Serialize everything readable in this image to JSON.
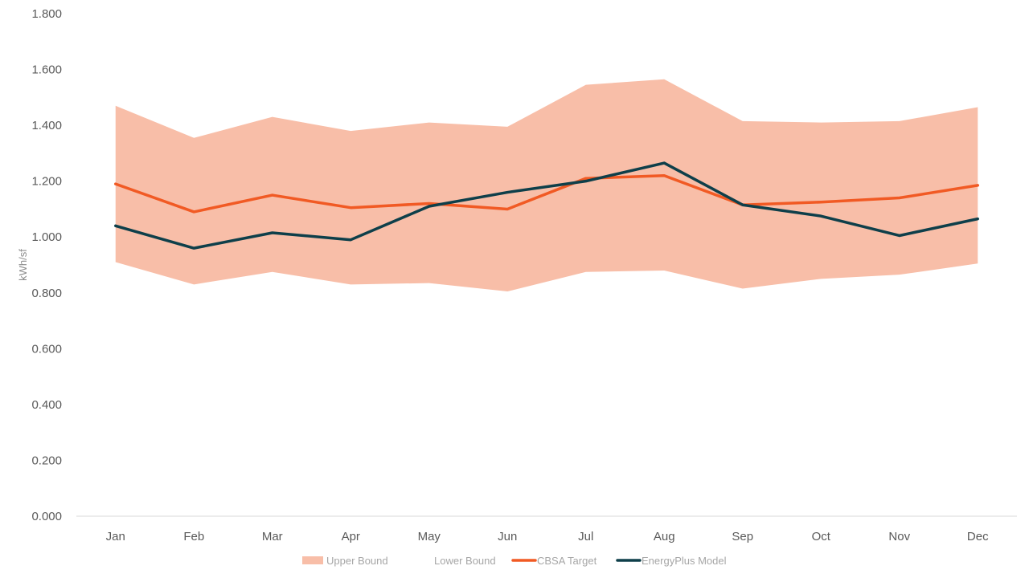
{
  "chart_data": {
    "type": "line",
    "title": "",
    "xlabel": "",
    "ylabel": "kWh/sf",
    "ylim": [
      0,
      1.8
    ],
    "y_ticks": [
      "0.000",
      "0.200",
      "0.400",
      "0.600",
      "0.800",
      "1.000",
      "1.200",
      "1.400",
      "1.600",
      "1.800"
    ],
    "categories": [
      "Jan",
      "Feb",
      "Mar",
      "Apr",
      "May",
      "Jun",
      "Jul",
      "Aug",
      "Sep",
      "Oct",
      "Nov",
      "Dec"
    ],
    "grid": false,
    "legend_position": "bottom",
    "series": [
      {
        "name": "Upper Bound",
        "kind": "area-band-top",
        "color": "#f8bea8",
        "values": [
          1.47,
          1.355,
          1.43,
          1.38,
          1.41,
          1.395,
          1.545,
          1.565,
          1.415,
          1.41,
          1.415,
          1.465
        ]
      },
      {
        "name": "Lower Bound",
        "kind": "area-band-bottom",
        "color": "#ffffff",
        "values": [
          0.91,
          0.83,
          0.875,
          0.83,
          0.835,
          0.805,
          0.875,
          0.88,
          0.815,
          0.85,
          0.865,
          0.905
        ]
      },
      {
        "name": "CBSA Target",
        "kind": "line",
        "color": "#f15a24",
        "values": [
          1.19,
          1.09,
          1.15,
          1.105,
          1.12,
          1.1,
          1.21,
          1.22,
          1.115,
          1.125,
          1.14,
          1.185
        ]
      },
      {
        "name": "EnergyPlus Model",
        "kind": "line",
        "color": "#0e3f4a",
        "values": [
          1.04,
          0.96,
          1.015,
          0.99,
          1.11,
          1.16,
          1.2,
          1.265,
          1.115,
          1.075,
          1.005,
          1.065
        ]
      }
    ]
  }
}
